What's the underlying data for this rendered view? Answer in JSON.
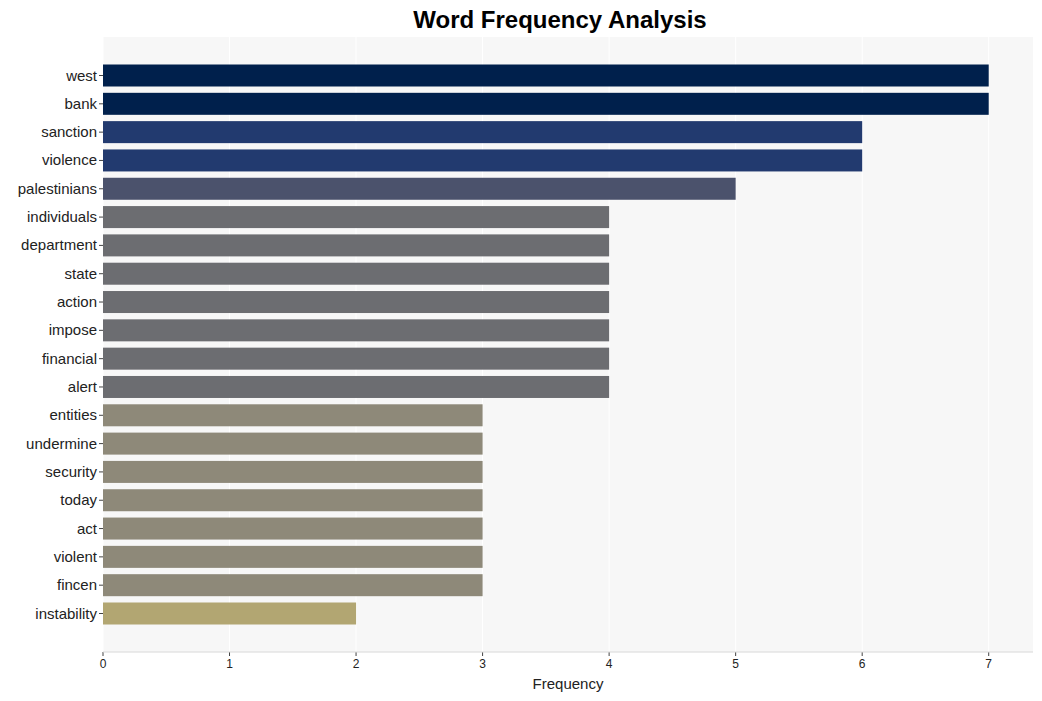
{
  "chart_data": {
    "type": "bar",
    "orientation": "horizontal",
    "title": "Word Frequency Analysis",
    "x_label": "Frequency",
    "categories": [
      "west",
      "bank",
      "sanction",
      "violence",
      "palestinians",
      "individuals",
      "department",
      "state",
      "action",
      "impose",
      "financial",
      "alert",
      "entities",
      "undermine",
      "security",
      "today",
      "act",
      "violent",
      "fincen",
      "instability"
    ],
    "values": [
      7,
      7,
      6,
      6,
      5,
      4,
      4,
      4,
      4,
      4,
      4,
      4,
      3,
      3,
      3,
      3,
      3,
      3,
      3,
      2
    ],
    "colors": [
      "#00204c",
      "#00204c",
      "#223a6f",
      "#223a6f",
      "#4b526c",
      "#6c6d71",
      "#6c6d71",
      "#6c6d71",
      "#6c6d71",
      "#6c6d71",
      "#6c6d71",
      "#6c6d71",
      "#8e8979",
      "#8e8979",
      "#8e8979",
      "#8e8979",
      "#8e8979",
      "#8e8979",
      "#8e8979",
      "#b2a672"
    ],
    "xlim": [
      0,
      7.35
    ],
    "xticks": [
      0,
      1,
      2,
      3,
      4,
      5,
      6,
      7
    ],
    "grid": true
  }
}
